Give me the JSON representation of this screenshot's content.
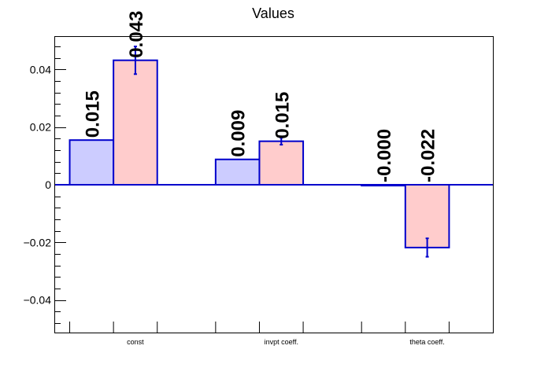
{
  "chart_data": {
    "type": "bar",
    "title": "Values",
    "xlabel": "",
    "ylabel": "",
    "categories": [
      "const",
      "invpt coeff.",
      "theta coeff."
    ],
    "ylim": [
      -0.0513,
      0.0513
    ],
    "yticks": [
      -0.04,
      -0.02,
      0,
      0.02,
      0.04
    ],
    "ytick_labels": [
      "−0.04",
      "−0.02",
      "0",
      "0.02",
      "0.04"
    ],
    "grid": false,
    "legend": "none",
    "series": [
      {
        "values": [
          0.0155,
          0.0088,
          -0.0003
        ],
        "labels": [
          "0.015",
          "0.009",
          "-0.000"
        ],
        "errors": [
          0,
          0,
          0
        ],
        "fill": "#ccccff",
        "edge": "#0000cc"
      },
      {
        "values": [
          0.0432,
          0.0151,
          -0.0218
        ],
        "labels": [
          "0.043",
          "0.015",
          "-0.022"
        ],
        "errors": [
          0.0048,
          0.0012,
          0.0032
        ],
        "fill": "#ffcccc",
        "edge": "#0000cc"
      }
    ]
  }
}
